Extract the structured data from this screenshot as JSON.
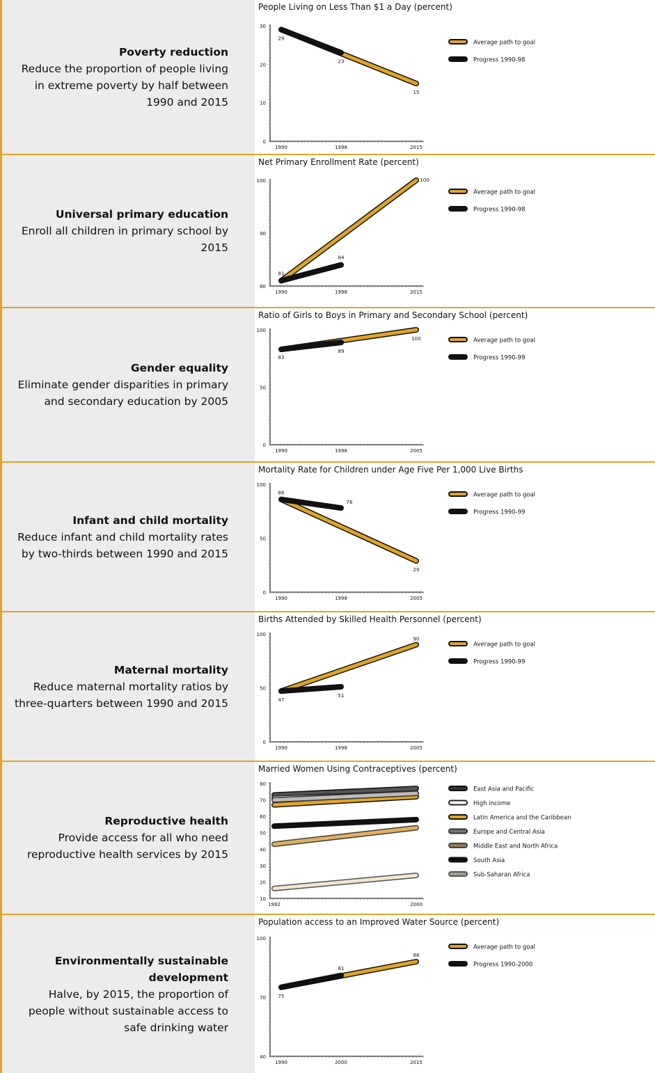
{
  "rows": [
    {
      "goal": {
        "title": "Poverty reduction",
        "text": "Reduce the proportion of people living in extreme poverty by half between 1990 and 2015"
      },
      "chart_data": {
        "type": "line",
        "title": "People Living on Less Than $1 a Day (percent)",
        "ylim": [
          0,
          30
        ],
        "yticks": [
          0,
          10,
          20,
          30
        ],
        "x_ticks": [
          "1990",
          "1998",
          "2015"
        ],
        "series": [
          {
            "name": "Average path to goal",
            "style": "gold",
            "x": [
              1990,
              2015
            ],
            "y": [
              29,
              15
            ]
          },
          {
            "name": "Progress 1990-98",
            "style": "black",
            "x": [
              1990,
              1998
            ],
            "y": [
              29,
              23
            ]
          }
        ],
        "labels": [
          {
            "x": 1990,
            "y": 29,
            "text": "29"
          },
          {
            "x": 1998,
            "y": 23,
            "text": "23"
          },
          {
            "x": 2015,
            "y": 15,
            "text": "15"
          }
        ]
      }
    },
    {
      "goal": {
        "title": "Universal primary education",
        "text": "Enroll all children in primary school by 2015"
      },
      "chart_data": {
        "type": "line",
        "title": "Net Primary Enrollment Rate (percent)",
        "ylim": [
          80,
          100
        ],
        "yticks": [
          80,
          90,
          100
        ],
        "x_ticks": [
          "1990",
          "1998",
          "2015"
        ],
        "series": [
          {
            "name": "Average path to goal",
            "style": "gold",
            "x": [
              1990,
              2015
            ],
            "y": [
              81,
              100
            ]
          },
          {
            "name": "Progress 1990-98",
            "style": "black",
            "x": [
              1990,
              1998
            ],
            "y": [
              81,
              84
            ]
          }
        ],
        "labels": [
          {
            "x": 1990,
            "y": 81,
            "text": "81"
          },
          {
            "x": 1998,
            "y": 84,
            "text": "84"
          },
          {
            "x": 2015,
            "y": 100,
            "text": "100"
          }
        ]
      }
    },
    {
      "goal": {
        "title": "Gender equality",
        "text": "Eliminate gender disparities in primary and secondary education by 2005"
      },
      "chart_data": {
        "type": "line",
        "title": "Ratio of Girls to Boys in Primary and Secondary School (percent)",
        "ylim": [
          0,
          100
        ],
        "yticks": [
          0,
          50,
          100
        ],
        "x_ticks": [
          "1990",
          "1998",
          "2005"
        ],
        "series": [
          {
            "name": "Average path to goal",
            "style": "gold",
            "x": [
              1990,
              2005
            ],
            "y": [
              83,
              100
            ]
          },
          {
            "name": "Progress 1990-99",
            "style": "black",
            "x": [
              1990,
              1998
            ],
            "y": [
              83,
              89
            ]
          }
        ],
        "labels": [
          {
            "x": 1990,
            "y": 83,
            "text": "83"
          },
          {
            "x": 1998,
            "y": 89,
            "text": "89"
          },
          {
            "x": 2005,
            "y": 100,
            "text": "100"
          }
        ]
      }
    },
    {
      "goal": {
        "title": "Infant and child mortality",
        "text": "Reduce infant and child mortality rates by two-thirds between 1990 and 2015"
      },
      "chart_data": {
        "type": "line",
        "title": "Mortality Rate for Children under Age Five Per 1,000 Live Births",
        "ylim": [
          0,
          100
        ],
        "yticks": [
          0,
          50,
          100
        ],
        "x_ticks": [
          "1990",
          "1998",
          "2005"
        ],
        "series": [
          {
            "name": "Average path to goal",
            "style": "gold",
            "x": [
              1990,
              2005
            ],
            "y": [
              86,
              29
            ]
          },
          {
            "name": "Progress 1990-99",
            "style": "black",
            "x": [
              1990,
              1998
            ],
            "y": [
              86,
              78
            ]
          }
        ],
        "labels": [
          {
            "x": 1990,
            "y": 86,
            "text": "86"
          },
          {
            "x": 1998,
            "y": 78,
            "text": "78"
          },
          {
            "x": 2005,
            "y": 29,
            "text": "29"
          }
        ]
      }
    },
    {
      "goal": {
        "title": "Maternal mortality",
        "text": "Reduce maternal mortality ratios by three-quarters between 1990 and 2015"
      },
      "chart_data": {
        "type": "line",
        "title": "Births Attended by Skilled Health Personnel (percent)",
        "ylim": [
          0,
          100
        ],
        "yticks": [
          0,
          50,
          100
        ],
        "x_ticks": [
          "1990",
          "1998",
          "2005"
        ],
        "series": [
          {
            "name": "Average path to goal",
            "style": "gold",
            "x": [
              1990,
              2005
            ],
            "y": [
              47,
              90
            ]
          },
          {
            "name": "Progress 1990-99",
            "style": "black",
            "x": [
              1990,
              1998
            ],
            "y": [
              47,
              51
            ]
          }
        ],
        "labels": [
          {
            "x": 1990,
            "y": 47,
            "text": "47"
          },
          {
            "x": 1998,
            "y": 51,
            "text": "51"
          },
          {
            "x": 2005,
            "y": 90,
            "text": "90"
          }
        ]
      }
    },
    {
      "goal": {
        "title": "Reproductive health",
        "text": "Provide access for all who need reproductive health services by 2015"
      },
      "chart_data": {
        "type": "line",
        "title": "Married Women Using Contraceptives (percent)",
        "ylim": [
          10,
          80
        ],
        "yticks": [
          10,
          20,
          30,
          40,
          50,
          60,
          70,
          80
        ],
        "x_ticks": [
          "1982",
          "2000"
        ],
        "series": [
          {
            "name": "East Asia and Pacific",
            "style": "darkstripe",
            "x": [
              1982,
              2000
            ],
            "y": [
              73,
              77
            ]
          },
          {
            "name": "High income",
            "style": "white",
            "x": [
              1982,
              2000
            ],
            "y": [
              71,
              74
            ]
          },
          {
            "name": "Latin America and the Caribbean",
            "style": "gold",
            "x": [
              1982,
              2000
            ],
            "y": [
              67,
              72
            ]
          },
          {
            "name": "Europe and Central Asia",
            "style": "greystripe",
            "x": [
              1982,
              2000
            ],
            "y": [
              70,
              74
            ]
          },
          {
            "name": "Middle East and North Africa",
            "style": "tanstripe",
            "x": [
              1982,
              2000
            ],
            "y": [
              43,
              53
            ]
          },
          {
            "name": "South Asia",
            "style": "black",
            "x": [
              1982,
              2000
            ],
            "y": [
              54,
              58
            ]
          },
          {
            "name": "Sub-Saharan Africa",
            "style": "beigestripe",
            "x": [
              1982,
              2000
            ],
            "y": [
              16,
              24
            ]
          }
        ]
      }
    },
    {
      "goal": {
        "title": "Environmentally sustainable development",
        "text": "Halve, by 2015, the proportion of people without sustainable access to safe drinking water"
      },
      "chart_data": {
        "type": "line",
        "title": "Population access to an Improved Water Source (percent)",
        "ylim": [
          40,
          100
        ],
        "yticks": [
          40,
          70,
          100
        ],
        "x_ticks": [
          "1990",
          "2000",
          "2015"
        ],
        "series": [
          {
            "name": "Average path to goal",
            "style": "gold",
            "x": [
              1990,
              2015
            ],
            "y": [
              75,
              88
            ]
          },
          {
            "name": "Progress 1990-2000",
            "style": "black",
            "x": [
              1990,
              2000
            ],
            "y": [
              75,
              81
            ]
          }
        ],
        "labels": [
          {
            "x": 1990,
            "y": 75,
            "text": "75"
          },
          {
            "x": 2000,
            "y": 81,
            "text": "81"
          },
          {
            "x": 2015,
            "y": 88,
            "text": "88"
          }
        ]
      }
    }
  ]
}
